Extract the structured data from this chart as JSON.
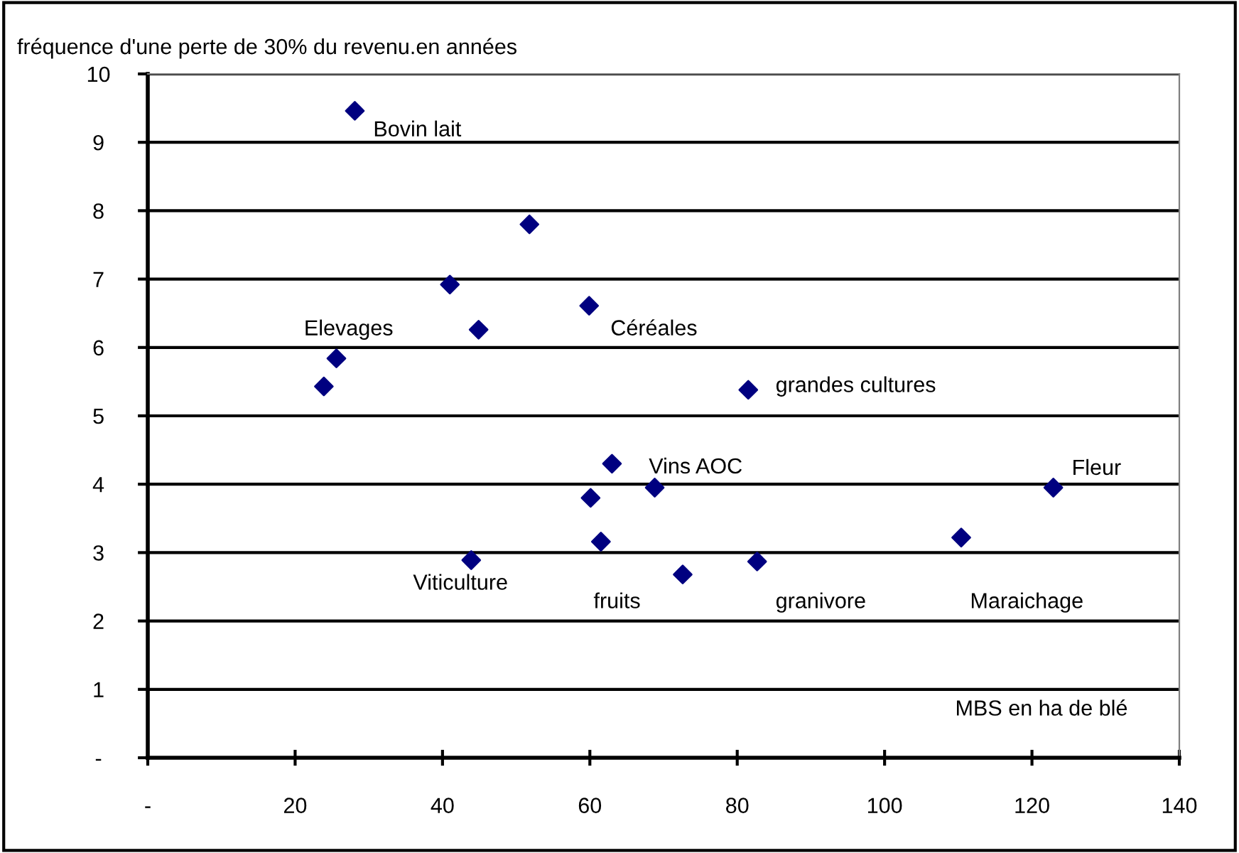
{
  "chart_data": {
    "type": "scatter",
    "ylabel": "fréquence d'une perte de 30% du revenu.en années",
    "xlabel": "MBS en ha de blé",
    "x": [
      28.1,
      51.8,
      41.0,
      44.9,
      59.9,
      25.6,
      23.9,
      81.5,
      63.0,
      60.1,
      68.8,
      61.5,
      43.9,
      72.6,
      82.7,
      110.4,
      122.9
    ],
    "series": [
      {
        "color": "#000080",
        "values": [
          9.46,
          7.8,
          6.92,
          6.26,
          6.61,
          5.84,
          5.43,
          5.38,
          4.3,
          3.8,
          3.95,
          3.16,
          2.89,
          2.68,
          2.87,
          3.22,
          3.95
        ]
      }
    ],
    "marker": "diamond",
    "xlim": [
      0,
      140
    ],
    "xticks": [
      {
        "value": 0,
        "label": "-"
      },
      20,
      40,
      60,
      80,
      100,
      120,
      140
    ],
    "ylim": [
      0,
      10
    ],
    "yticks": [
      {
        "value": 0,
        "label": "-"
      },
      1,
      2,
      3,
      4,
      5,
      6,
      7,
      8,
      9,
      10
    ],
    "grid": "y",
    "annotations": [
      {
        "text": "Bovin lait",
        "x": 28.1,
        "y": 9.46
      },
      {
        "text": "Elevages",
        "x": 25.6,
        "y": 5.84
      },
      {
        "text": "Céréales",
        "x": 59.9,
        "y": 6.61
      },
      {
        "text": "grandes cultures",
        "x": 81.5,
        "y": 5.38
      },
      {
        "text": "Vins AOC",
        "x": 63.0,
        "y": 4.3
      },
      {
        "text": "Fleur",
        "x": 122.9,
        "y": 3.95
      },
      {
        "text": "Viticulture",
        "x": 43.9,
        "y": 2.89
      },
      {
        "text": "fruits",
        "x": 61.5,
        "y": 3.16
      },
      {
        "text": "granivore",
        "x": 82.7,
        "y": 2.87
      },
      {
        "text": "Maraichage",
        "x": 110.4,
        "y": 3.22
      }
    ]
  }
}
